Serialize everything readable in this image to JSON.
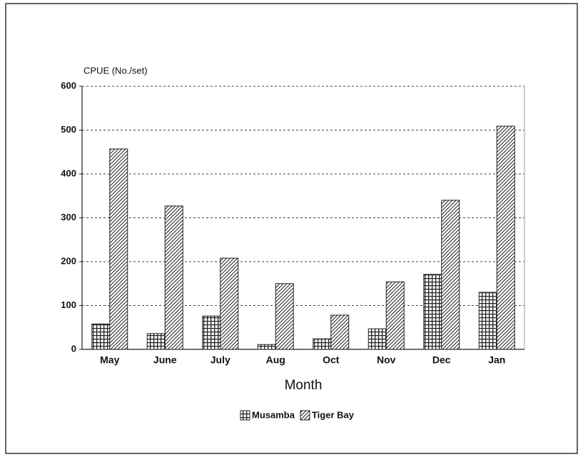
{
  "chart_data": {
    "type": "bar",
    "y_label": "CPUE (No./set)",
    "x_label": "Month",
    "categories": [
      "May",
      "June",
      "July",
      "Aug",
      "Oct",
      "Nov",
      "Dec",
      "Jan"
    ],
    "series": [
      {
        "name": "Musamba",
        "color": "#222222",
        "values": [
          58,
          36,
          76,
          11,
          24,
          47,
          171,
          130
        ]
      },
      {
        "name": "Tiger Bay",
        "color": "#222222",
        "values": [
          457,
          327,
          208,
          150,
          78,
          154,
          340,
          509
        ]
      }
    ],
    "ylim": [
      0,
      600
    ],
    "yticks": [
      0,
      100,
      200,
      300,
      400,
      500,
      600
    ],
    "grid": true
  }
}
